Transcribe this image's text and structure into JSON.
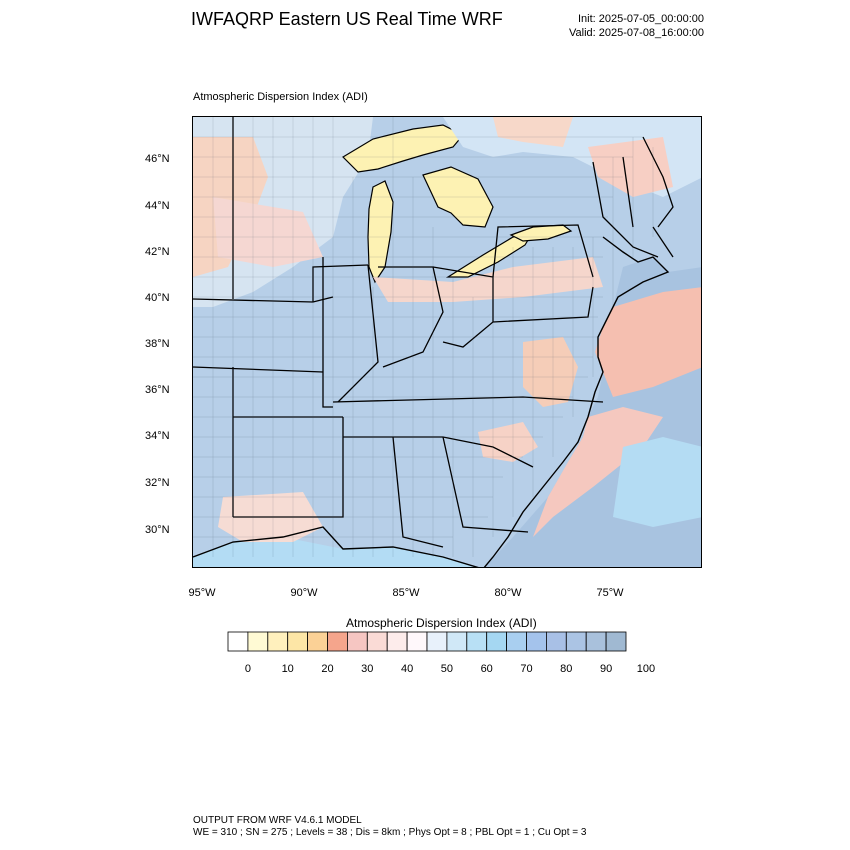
{
  "header": {
    "title": "IWFAQRP Eastern US Real Time WRF",
    "init": "Init: 2025-07-05_00:00:00",
    "valid": "Valid: 2025-07-08_16:00:00"
  },
  "map": {
    "subtitle": "Atmospheric Dispersion Index   (ADI)",
    "lat_labels": [
      "46°N",
      "44°N",
      "42°N",
      "40°N",
      "38°N",
      "36°N",
      "34°N",
      "32°N",
      "30°N"
    ],
    "lon_labels": [
      "95°W",
      "90°W",
      "85°W",
      "80°W",
      "75°W"
    ],
    "colors": {
      "land_high": "#a9c4e0",
      "land_mid": "#bcd6ef",
      "land_low": "#f7d7d5",
      "water_high": "#9ebad8",
      "water_mid": "#b3dcf4",
      "water_low": "#f5b8a8",
      "lake": "#fdf2b3",
      "borders": "#000000"
    }
  },
  "colorbar": {
    "title": "Atmospheric Dispersion Index  (ADI)",
    "tick_labels": [
      "0",
      "10",
      "20",
      "30",
      "40",
      "50",
      "60",
      "70",
      "80",
      "90",
      "100"
    ],
    "colors": [
      "#ffffff",
      "#fffad4",
      "#fff0bd",
      "#fde6a6",
      "#fbd196",
      "#f5a58c",
      "#f6c6c2",
      "#fadbd6",
      "#fdeceb",
      "#fff8fb",
      "#e8f1fb",
      "#d0e8f7",
      "#b8e0f5",
      "#a5d7f2",
      "#a9cff0",
      "#a4c3ec",
      "#a8c0e6",
      "#abc4e4",
      "#a9c1dc",
      "#a0b9d2"
    ]
  },
  "footer": {
    "line1": "OUTPUT FROM WRF V4.6.1 MODEL",
    "line2": "WE = 310 ; SN = 275 ; Levels = 38 ; Dis = 8km ; Phys Opt = 8 ; PBL Opt = 1 ; Cu Opt = 3"
  }
}
